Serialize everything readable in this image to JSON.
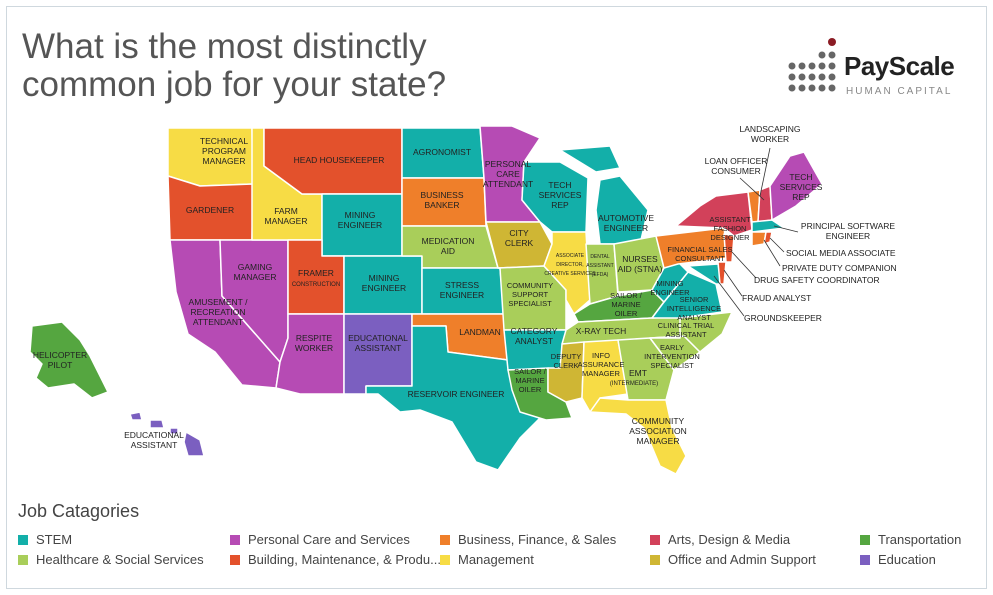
{
  "title": {
    "line1": "What is the most distinctly",
    "line2": "common job for your state?"
  },
  "logo": {
    "word": "PayScale",
    "sub": "HUMAN CAPITAL",
    "dot_color": "#666666",
    "accent_color": "#8b1c24"
  },
  "colors": {
    "stem": "#13afa9",
    "personal_care": "#b64bb4",
    "business": "#ef7f2a",
    "arts": "#d2415a",
    "transportation": "#55a640",
    "healthcare": "#a9ce5a",
    "building": "#e3512c",
    "management": "#f7dc45",
    "office": "#cfb634",
    "education": "#7b5fc0"
  },
  "states": {
    "wa": "TECHNICAL PROGRAM MANAGER",
    "or": "GARDENER",
    "ca": "AMUSEMENT / RECREATION ATTENDANT",
    "nv": "GAMING MANAGER",
    "id": "FARM MANAGER",
    "mt": "HEAD HOUSEKEEPER",
    "wy": "MINING ENGINEER",
    "ut": "FRAMER",
    "ut_sub": "CONSTRUCTION",
    "co": "MINING ENGINEER",
    "az": "RESPITE WORKER",
    "nm": "EDUCATIONAL ASSISTANT",
    "nd": "AGRONOMIST",
    "sd": "BUSINESS BANKER",
    "ne": "MEDICATION AID",
    "ks": "STRESS ENGINEER",
    "ok": "LANDMAN",
    "tx": "RESERVOIR ENGINEER",
    "mn": "PERSONAL CARE ATTENDANT",
    "ia": "CITY CLERK",
    "mo": "COMMUNITY SUPPORT SPECIALIST",
    "ar": "CATEGORY ANALYST",
    "la": "SAILOR / MARINE OILER",
    "wi": "TECH SERVICES REP",
    "il": "ASSOCIATE DIRECTOR, CREATIVE SERVICES",
    "mi": "AUTOMOTIVE ENGINEER",
    "in": "DENTAL ASSISTANT (EFDA)",
    "oh": "NURSES AID (STNA)",
    "ky": "SAILOR / MARINE OILER",
    "tn": "X-RAY TECH",
    "ms": "DEPUTY CLERK",
    "al": "INFO ASSURANCE MANAGER",
    "ga": "EMT",
    "ga_sub": "(INTERMEDIATE)",
    "fl": "COMMUNITY ASSOCIATION MANAGER",
    "sc": "EARLY INTERVENTION SPECIALIST",
    "nc": "CLINICAL TRIAL ASSISTANT",
    "va": "SENIOR INTELLIGENCE ANALYST",
    "wv": "MINING ENGINEER",
    "pa": "FINANCIAL SALES CONSULTANT",
    "ny": "ASSISTANT FASHION DESIGNER",
    "me": "TECH SERVICES REP",
    "ak": "HELICOPTER PILOT",
    "hi": "EDUCATIONAL ASSISTANT",
    "vt": "LANDSCAPING WORKER",
    "nh": "LOAN OFFICER CONSUMER",
    "ma": "PRINCIPAL SOFTWARE ENGINEER",
    "ri": "SOCIAL MEDIA ASSOCIATE",
    "ct": "PRIVATE DUTY COMPANION",
    "nj": "DRUG SAFETY COORDINATOR",
    "de": "FRAUD ANALYST",
    "md": "GROUNDSKEEPER"
  },
  "legend": {
    "title": "Job Catagories",
    "items": [
      {
        "label": "STEM",
        "color": "#13afa9"
      },
      {
        "label": "Personal Care and Services",
        "color": "#b64bb4"
      },
      {
        "label": "Business, Finance, & Sales",
        "color": "#ef7f2a"
      },
      {
        "label": "Arts, Design & Media",
        "color": "#d2415a"
      },
      {
        "label": "Transportation",
        "color": "#55a640"
      },
      {
        "label": "Healthcare & Social Services",
        "color": "#a9ce5a"
      },
      {
        "label": "Building, Maintenance, & Produ...",
        "color": "#e3512c"
      },
      {
        "label": "Management",
        "color": "#f7dc45"
      },
      {
        "label": "Office and Admin Support",
        "color": "#cfb634"
      },
      {
        "label": "Education",
        "color": "#7b5fc0"
      }
    ]
  }
}
